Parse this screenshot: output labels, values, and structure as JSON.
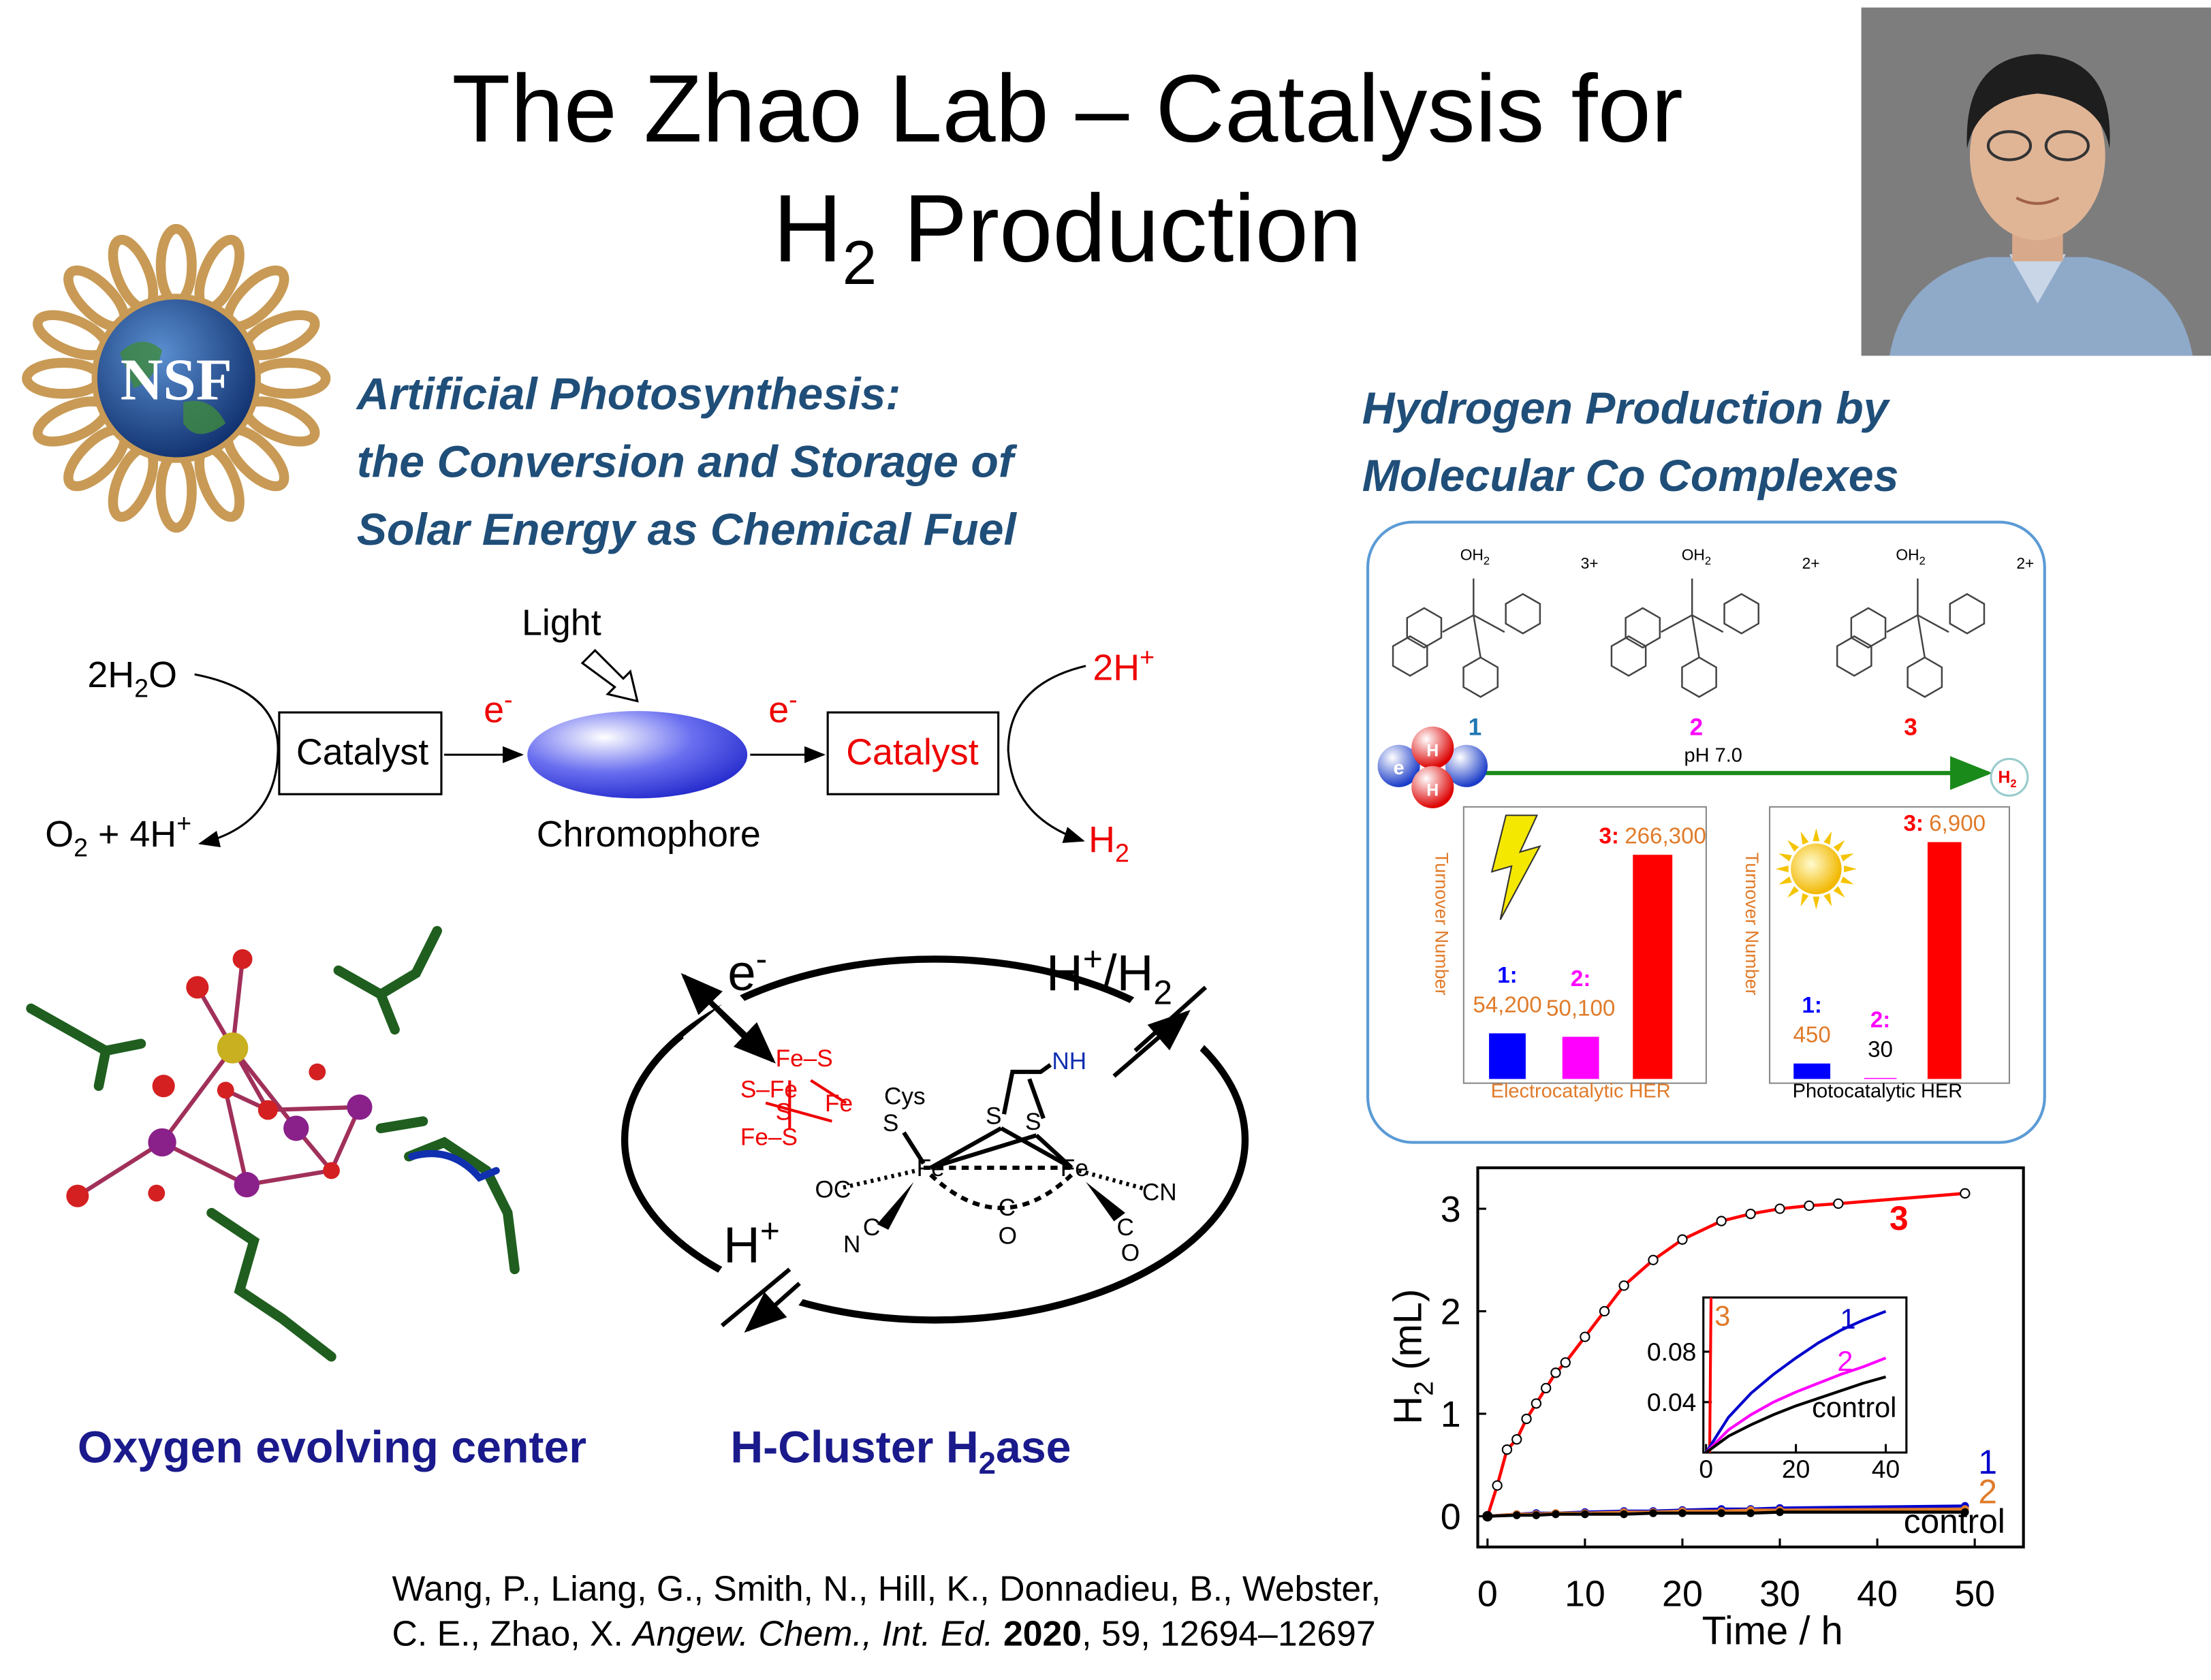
{
  "title": {
    "line1": "The Zhao Lab – Catalysis for",
    "line2": [
      "H",
      "2",
      " Production"
    ]
  },
  "nsf_logo": "NSF",
  "left_heading": [
    "Artificial Photosynthesis:",
    "the Conversion and Storage of",
    "Solar Energy as Chemical Fuel"
  ],
  "right_heading": [
    "Hydrogen Production by",
    "Molecular Co Complexes"
  ],
  "scheme": {
    "water": [
      "2H",
      "2",
      "O"
    ],
    "oxygen": [
      "O",
      "2",
      " + 4H",
      "+"
    ],
    "catalyst_left": "Catalyst",
    "e_left": [
      "e",
      "-"
    ],
    "light": "Light",
    "chromophore": "Chromophore",
    "e_right": [
      "e",
      "-"
    ],
    "catalyst_right": "Catalyst",
    "protons": [
      "2H",
      "+"
    ],
    "hydrogen": [
      "H",
      "2"
    ]
  },
  "hcluster": {
    "e": [
      "e",
      "-"
    ],
    "h_h2": [
      "H",
      "+",
      "/H",
      "2"
    ],
    "h": [
      "H",
      "+"
    ],
    "labels": [
      "Fe–S",
      "S–Fe",
      "Fe",
      "S",
      "Fe–S",
      "Cys",
      "S",
      "NH",
      "S",
      "S",
      "Fe",
      "Fe",
      "OC",
      "CN",
      "C",
      "O",
      "N",
      "C",
      "C",
      "O"
    ]
  },
  "co_complexes": {
    "labels": [
      "1",
      "2",
      "3"
    ],
    "charges": [
      "3+",
      "2+",
      "2+"
    ],
    "water_ligand": [
      "OH",
      "2"
    ],
    "ph": "pH 7.0",
    "electron": "e",
    "proton": "H",
    "product": [
      "H",
      "2"
    ]
  },
  "captions": {
    "oec": "Oxygen evolving center",
    "hcluster": [
      "H-Cluster H",
      "2",
      "ase"
    ]
  },
  "citation": {
    "line1": "Wang, P., Liang, G., Smith, N., Hill, K., Donnadieu, B., Webster,",
    "line2": [
      "C. E., Zhao, X. ",
      "Angew. Chem., Int. Ed.",
      "2020",
      ", 59, 12694–12697"
    ]
  },
  "chart_data": [
    {
      "type": "bar",
      "title": "Electrocatalytic HER",
      "title_color": "#e07b2a",
      "y_label": "Turnover Number",
      "categories": [
        "1:",
        "2:",
        "3:"
      ],
      "values": [
        54200,
        50100,
        266300
      ],
      "value_labels": [
        "54,200",
        "50,100",
        "266,300"
      ],
      "colors": [
        "#0000ff",
        "#ff00ff",
        "#ff0000"
      ],
      "label_colors": [
        "#e07b2a",
        "#e07b2a",
        "#e07b2a"
      ]
    },
    {
      "type": "bar",
      "title": "Photocatalytic HER",
      "title_color": "#000000",
      "y_label": "Turnover Number",
      "categories": [
        "1:",
        "2:",
        "3:"
      ],
      "values": [
        450,
        30,
        6900
      ],
      "value_labels": [
        "450",
        "30",
        "6,900"
      ],
      "colors": [
        "#0000ff",
        "#ff00ff",
        "#ff0000"
      ],
      "label_colors": [
        "#e07b2a",
        "#000000",
        "#e07b2a"
      ]
    },
    {
      "type": "line",
      "x_label": "Time / h",
      "y_label": [
        "H",
        "2",
        " (mL)"
      ],
      "xlim": [
        -1,
        55
      ],
      "ylim": [
        -0.3,
        3.4
      ],
      "xticks": [
        0,
        10,
        20,
        30,
        40,
        50
      ],
      "yticks": [
        0,
        1,
        2,
        3
      ],
      "series": [
        {
          "name": "3",
          "color": "#ff0000",
          "marker": "open",
          "x": [
            0,
            1,
            2,
            3,
            4,
            5,
            6,
            7,
            8,
            10,
            12,
            14,
            17,
            20,
            24,
            27,
            30,
            33,
            36,
            49
          ],
          "values": [
            0,
            0.3,
            0.65,
            0.75,
            0.95,
            1.1,
            1.25,
            1.4,
            1.5,
            1.75,
            2.0,
            2.25,
            2.5,
            2.7,
            2.88,
            2.95,
            3.0,
            3.03,
            3.05,
            3.15
          ]
        },
        {
          "name": "1",
          "color": "#0000cc",
          "marker": "filled",
          "x": [
            0,
            3,
            5,
            7,
            10,
            14,
            17,
            20,
            24,
            27,
            30,
            49
          ],
          "values": [
            0,
            0.02,
            0.03,
            0.03,
            0.04,
            0.05,
            0.05,
            0.06,
            0.07,
            0.07,
            0.08,
            0.1
          ]
        },
        {
          "name": "2",
          "color": "#e07b2a",
          "marker": "filled",
          "x": [
            0,
            3,
            5,
            7,
            10,
            14,
            17,
            20,
            24,
            27,
            30,
            49
          ],
          "values": [
            0,
            0.02,
            0.02,
            0.03,
            0.03,
            0.04,
            0.04,
            0.05,
            0.05,
            0.06,
            0.06,
            0.07
          ]
        },
        {
          "name": "control",
          "color": "#000000",
          "marker": "filled",
          "x": [
            0,
            3,
            5,
            7,
            10,
            14,
            17,
            20,
            24,
            27,
            30,
            49
          ],
          "values": [
            0,
            0.01,
            0.01,
            0.02,
            0.02,
            0.02,
            0.03,
            0.03,
            0.03,
            0.03,
            0.04,
            0.04
          ]
        }
      ]
    },
    {
      "type": "line",
      "xlim": [
        -0.6,
        44.6
      ],
      "ylim": [
        0,
        0.123
      ],
      "xticks": [
        0,
        20,
        40
      ],
      "yticks": [
        0.04,
        0.08
      ],
      "series": [
        {
          "name": "3",
          "color": "#ff0000",
          "label_color": "#e07b2a",
          "marker": "none",
          "x": [
            0.8,
            1.3
          ],
          "values": [
            0,
            0.2
          ]
        },
        {
          "name": "1",
          "color": "#0000cc",
          "marker": "none",
          "x": [
            0,
            5,
            10,
            15,
            20,
            25,
            30,
            35,
            40
          ],
          "values": [
            0,
            0.028,
            0.047,
            0.062,
            0.075,
            0.087,
            0.097,
            0.105,
            0.112
          ]
        },
        {
          "name": "2",
          "color": "#ff00ff",
          "marker": "none",
          "x": [
            0,
            5,
            10,
            15,
            20,
            25,
            30,
            35,
            40
          ],
          "values": [
            0,
            0.018,
            0.03,
            0.04,
            0.048,
            0.055,
            0.062,
            0.068,
            0.075
          ]
        },
        {
          "name": "control",
          "color": "#000000",
          "marker": "none",
          "x": [
            0,
            5,
            10,
            15,
            20,
            25,
            30,
            35,
            40
          ],
          "values": [
            0,
            0.013,
            0.022,
            0.03,
            0.037,
            0.043,
            0.049,
            0.055,
            0.06
          ]
        }
      ]
    }
  ]
}
